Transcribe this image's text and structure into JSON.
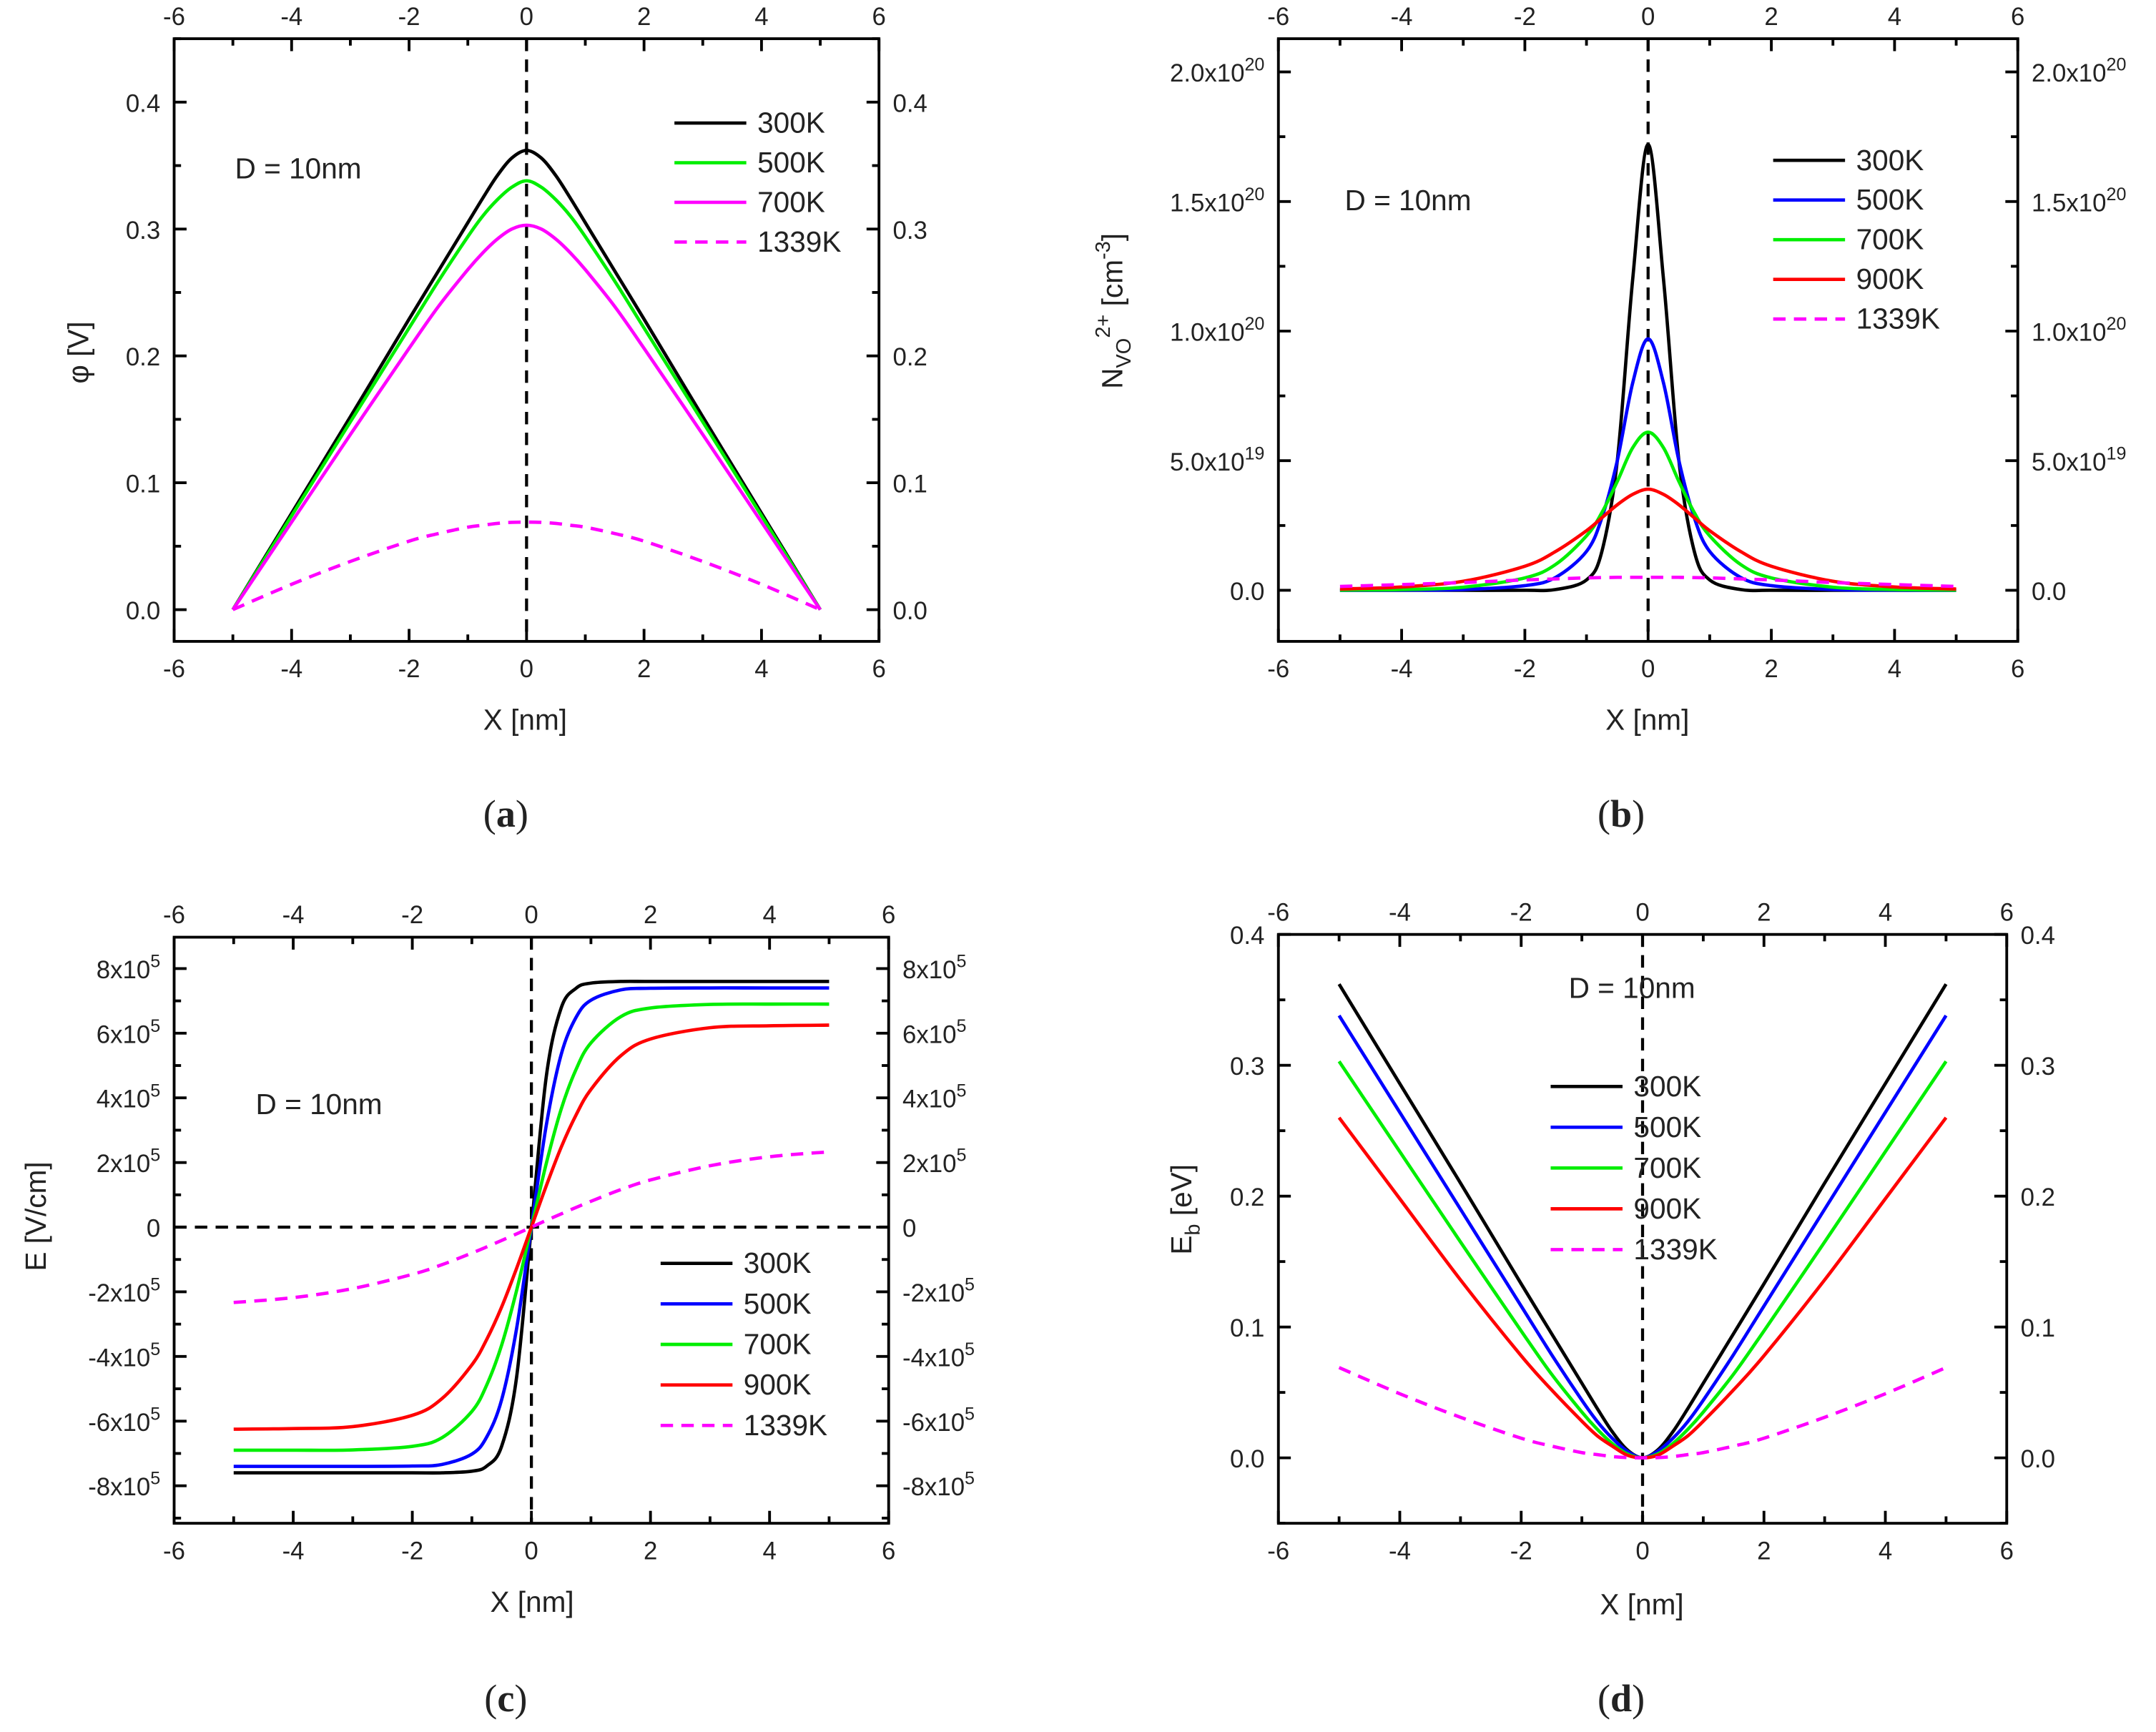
{
  "chart_data": [
    {
      "id": "a",
      "type": "line",
      "panel_label": "a",
      "annotation": "D = 10nm",
      "xlabel": "X [nm]",
      "ylabel_parts": [
        {
          "text": "φ [V]"
        }
      ],
      "xlim": [
        -6,
        6
      ],
      "ylim": [
        -0.025,
        0.45
      ],
      "xticks": [
        -6,
        -4,
        -2,
        0,
        2,
        4,
        6
      ],
      "xtick_labels": [
        "-6",
        "-4",
        "-2",
        "0",
        "2",
        "4",
        "6"
      ],
      "yticks": [
        0,
        0.1,
        0.2,
        0.3,
        0.4
      ],
      "ytick_labels": [
        "0.0",
        "0.1",
        "0.2",
        "0.3",
        "0.4"
      ],
      "reference_lines": {
        "vline": 0
      },
      "legend_position": "top-right",
      "x": [
        -5,
        -4,
        -3,
        -2,
        -1.5,
        -1,
        -0.75,
        -0.5,
        -0.25,
        0,
        0.25,
        0.5,
        0.75,
        1,
        1.5,
        2,
        3,
        4,
        5
      ],
      "series": [
        {
          "name": "300K",
          "color": "#000000",
          "dashed": false,
          "values": [
            0,
            0.076,
            0.152,
            0.229,
            0.267,
            0.305,
            0.324,
            0.342,
            0.356,
            0.362,
            0.356,
            0.342,
            0.324,
            0.305,
            0.267,
            0.229,
            0.152,
            0.076,
            0
          ]
        },
        {
          "name": "500K",
          "color": "#00ee00",
          "dashed": false,
          "values": [
            0,
            0.074,
            0.148,
            0.222,
            0.259,
            0.294,
            0.31,
            0.323,
            0.333,
            0.338,
            0.333,
            0.323,
            0.31,
            0.294,
            0.259,
            0.222,
            0.148,
            0.074,
            0
          ]
        },
        {
          "name": "700K",
          "color": "#ff00ff",
          "dashed": false,
          "values": [
            0,
            0.069,
            0.138,
            0.206,
            0.239,
            0.268,
            0.281,
            0.292,
            0.3,
            0.303,
            0.3,
            0.292,
            0.281,
            0.268,
            0.239,
            0.206,
            0.138,
            0.069,
            0
          ]
        },
        {
          "name": "1339K",
          "color": "#ff00ff",
          "dashed": true,
          "values": [
            0,
            0.02,
            0.038,
            0.054,
            0.06,
            0.065,
            0.0665,
            0.068,
            0.0688,
            0.069,
            0.0688,
            0.068,
            0.0665,
            0.065,
            0.06,
            0.054,
            0.038,
            0.02,
            0
          ]
        }
      ]
    },
    {
      "id": "b",
      "type": "line",
      "panel_label": "b",
      "annotation": "D = 10nm",
      "xlabel": "X [nm]",
      "ylabel_parts": [
        {
          "text": "N"
        },
        {
          "text": "VO",
          "shift": "sub"
        },
        {
          "text": "2+",
          "shift": "sup"
        },
        {
          "text": " [cm"
        },
        {
          "text": "-3",
          "shift": "sup"
        },
        {
          "text": "]"
        }
      ],
      "xlim": [
        -6,
        6
      ],
      "ylim": [
        -1.97e+19,
        2.128e+20
      ],
      "xticks": [
        -6,
        -4,
        -2,
        0,
        2,
        4,
        6
      ],
      "xtick_labels": [
        "-6",
        "-4",
        "-2",
        "0",
        "2",
        "4",
        "6"
      ],
      "yticks": [
        0,
        5e+19,
        1e+20,
        1.5e+20,
        2e+20
      ],
      "ytick_labels": [
        "0.0",
        "5.0x10^19",
        "1.0x10^20",
        "1.5x10^20",
        "2.0x10^20"
      ],
      "reference_lines": {
        "vline": 0
      },
      "legend_position": "top-right",
      "x": [
        -5,
        -4,
        -3,
        -2,
        -1.5,
        -1,
        -0.75,
        -0.5,
        -0.25,
        0,
        0.25,
        0.5,
        0.75,
        1,
        1.5,
        2,
        3,
        4,
        5
      ],
      "series": [
        {
          "name": "300K",
          "color": "#000000",
          "dashed": false,
          "values": [
            0,
            0,
            0,
            0,
            3e+17,
            4e+18,
            1.5e+19,
            5e+19,
            1.2e+20,
            1.72e+20,
            1.2e+20,
            5e+19,
            1.5e+19,
            4e+18,
            3e+17,
            0,
            0,
            0,
            0
          ]
        },
        {
          "name": "500K",
          "color": "#0000ff",
          "dashed": false,
          "values": [
            0,
            5e+16,
            3e+17,
            1.8e+18,
            5e+18,
            1.5e+19,
            2.8e+19,
            5e+19,
            8e+19,
            9.7e+19,
            8e+19,
            5e+19,
            2.8e+19,
            1.5e+19,
            5e+18,
            1.8e+18,
            3e+17,
            5e+16,
            0
          ]
        },
        {
          "name": "700K",
          "color": "#00ee00",
          "dashed": false,
          "values": [
            1e+17,
            3e+17,
            1.2e+18,
            4.8e+18,
            1e+19,
            2.1e+19,
            3e+19,
            4.2e+19,
            5.5e+19,
            6.1e+19,
            5.5e+19,
            4.2e+19,
            3e+19,
            2.1e+19,
            1e+19,
            4.8e+18,
            1.2e+18,
            3e+17,
            1e+17
          ]
        },
        {
          "name": "900K",
          "color": "#ff0000",
          "dashed": false,
          "values": [
            5e+17,
            1.3e+18,
            3.5e+18,
            9.3e+18,
            1.5e+19,
            2.3e+19,
            2.8e+19,
            3.3e+19,
            3.7e+19,
            3.9e+19,
            3.7e+19,
            3.3e+19,
            2.8e+19,
            2.3e+19,
            1.5e+19,
            9.3e+18,
            3.5e+18,
            1.3e+18,
            5e+17
          ]
        },
        {
          "name": "1339K",
          "color": "#ff00ff",
          "dashed": true,
          "values": [
            1.5e+18,
            2.2e+18,
            3e+18,
            4e+18,
            4.4e+18,
            4.8e+18,
            4.9e+18,
            5e+18,
            5e+18,
            5e+18,
            5e+18,
            5e+18,
            4.9e+18,
            4.8e+18,
            4.4e+18,
            4e+18,
            3e+18,
            2.2e+18,
            1.5e+18
          ]
        }
      ]
    },
    {
      "id": "c",
      "type": "line",
      "panel_label": "c",
      "annotation": "D = 10nm",
      "xlabel": "X [nm]",
      "ylabel_parts": [
        {
          "text": "E [V/cm]"
        }
      ],
      "xlim": [
        -6,
        6
      ],
      "ylim": [
        -916000.0,
        897000.0
      ],
      "xticks": [
        -6,
        -4,
        -2,
        0,
        2,
        4,
        6
      ],
      "xtick_labels": [
        "-6",
        "-4",
        "-2",
        "0",
        "2",
        "4",
        "6"
      ],
      "yticks": [
        -800000.0,
        -600000.0,
        -400000.0,
        -200000.0,
        0,
        200000.0,
        400000.0,
        600000.0,
        800000.0
      ],
      "ytick_labels": [
        "-8x10^5",
        "-6x10^5",
        "-4x10^5",
        "-2x10^5",
        "0",
        "2x10^5",
        "4x10^5",
        "6x10^5",
        "8x10^5"
      ],
      "reference_lines": {
        "vline": 0,
        "hline": 0
      },
      "legend_position": "bottom-right",
      "x": [
        -5,
        -4,
        -3,
        -2,
        -1.5,
        -1,
        -0.75,
        -0.5,
        -0.25,
        0,
        0.25,
        0.5,
        0.75,
        1,
        1.5,
        2,
        3,
        4,
        5
      ],
      "series": [
        {
          "name": "300K",
          "color": "#000000",
          "dashed": false,
          "values": [
            -760000.0,
            -760000.0,
            -760000.0,
            -760000.0,
            -760000.0,
            -755000.0,
            -739000.0,
            -678000.0,
            -466000.0,
            0,
            466000.0,
            678000.0,
            739000.0,
            755000.0,
            760000.0,
            760000.0,
            760000.0,
            760000.0,
            760000.0
          ]
        },
        {
          "name": "500K",
          "color": "#0000ff",
          "dashed": false,
          "values": [
            -740000.0,
            -740000.0,
            -740000.0,
            -739000.0,
            -734000.0,
            -702000.0,
            -649000.0,
            -534000.0,
            -315000.0,
            0,
            315000.0,
            534000.0,
            649000.0,
            702000.0,
            734000.0,
            739000.0,
            740000.0,
            740000.0,
            740000.0
          ]
        },
        {
          "name": "700K",
          "color": "#00ee00",
          "dashed": false,
          "values": [
            -690000.0,
            -690000.0,
            -689000.0,
            -678000.0,
            -651000.0,
            -570000.0,
            -488000.0,
            -365000.0,
            -197000.0,
            0,
            197000.0,
            365000.0,
            488000.0,
            570000.0,
            651000.0,
            678000.0,
            689000.0,
            690000.0,
            690000.0
          ]
        },
        {
          "name": "900K",
          "color": "#ff0000",
          "dashed": false,
          "values": [
            -625000.0,
            -623000.0,
            -617000.0,
            -582000.0,
            -530000.0,
            -426000.0,
            -347000.0,
            -247000.0,
            -128000.0,
            0,
            128000.0,
            247000.0,
            347000.0,
            426000.0,
            530000.0,
            582000.0,
            617000.0,
            623000.0,
            625000.0
          ]
        },
        {
          "name": "1339K",
          "color": "#ff00ff",
          "dashed": true,
          "values": [
            -233000.0,
            -218000.0,
            -190000.0,
            -146000.0,
            -116000.0,
            -80000.0,
            -61000.0,
            -41000.0,
            -21000.0,
            0,
            21000.0,
            41000.0,
            61000.0,
            80000.0,
            116000.0,
            146000.0,
            190000.0,
            218000.0,
            233000.0
          ]
        }
      ]
    },
    {
      "id": "d",
      "type": "line",
      "panel_label": "d",
      "annotation": "D = 10nm",
      "xlabel": "X [nm]",
      "ylabel_parts": [
        {
          "text": "E"
        },
        {
          "text": "b",
          "shift": "sub"
        },
        {
          "text": " [eV]"
        }
      ],
      "xlim": [
        -6,
        6
      ],
      "ylim": [
        -0.05,
        0.4
      ],
      "xticks": [
        -6,
        -4,
        -2,
        0,
        2,
        4,
        6
      ],
      "xtick_labels": [
        "-6",
        "-4",
        "-2",
        "0",
        "2",
        "4",
        "6"
      ],
      "yticks": [
        0,
        0.1,
        0.2,
        0.3,
        0.4
      ],
      "ytick_labels": [
        "0.0",
        "0.1",
        "0.2",
        "0.3",
        "0.4"
      ],
      "reference_lines": {
        "vline": 0
      },
      "legend_position": "top-center",
      "x": [
        -5,
        -4,
        -3,
        -2,
        -1.5,
        -1,
        -0.75,
        -0.5,
        -0.25,
        0,
        0.25,
        0.5,
        0.75,
        1,
        1.5,
        2,
        3,
        4,
        5
      ],
      "series": [
        {
          "name": "300K",
          "color": "#000000",
          "dashed": false,
          "values": [
            0.362,
            0.286,
            0.21,
            0.133,
            0.095,
            0.057,
            0.038,
            0.02,
            0.006,
            0,
            0.006,
            0.02,
            0.038,
            0.057,
            0.095,
            0.133,
            0.21,
            0.286,
            0.362
          ]
        },
        {
          "name": "500K",
          "color": "#0000ff",
          "dashed": false,
          "values": [
            0.338,
            0.264,
            0.19,
            0.116,
            0.079,
            0.044,
            0.028,
            0.015,
            0.005,
            0,
            0.005,
            0.015,
            0.028,
            0.044,
            0.079,
            0.116,
            0.19,
            0.264,
            0.338
          ]
        },
        {
          "name": "700K",
          "color": "#00ee00",
          "dashed": false,
          "values": [
            0.303,
            0.234,
            0.165,
            0.097,
            0.064,
            0.035,
            0.022,
            0.011,
            0.003,
            0,
            0.003,
            0.011,
            0.022,
            0.035,
            0.064,
            0.097,
            0.165,
            0.234,
            0.303
          ]
        },
        {
          "name": "900K",
          "color": "#ff0000",
          "dashed": false,
          "values": [
            0.26,
            0.198,
            0.136,
            0.078,
            0.052,
            0.028,
            0.017,
            0.009,
            0.002,
            0,
            0.002,
            0.009,
            0.017,
            0.028,
            0.052,
            0.078,
            0.136,
            0.198,
            0.26
          ]
        },
        {
          "name": "1339K",
          "color": "#ff00ff",
          "dashed": true,
          "values": [
            0.069,
            0.049,
            0.031,
            0.015,
            0.009,
            0.004,
            0.0025,
            0.001,
            0.0002,
            0,
            0.0002,
            0.001,
            0.0025,
            0.004,
            0.009,
            0.015,
            0.031,
            0.049,
            0.069
          ]
        }
      ]
    }
  ]
}
